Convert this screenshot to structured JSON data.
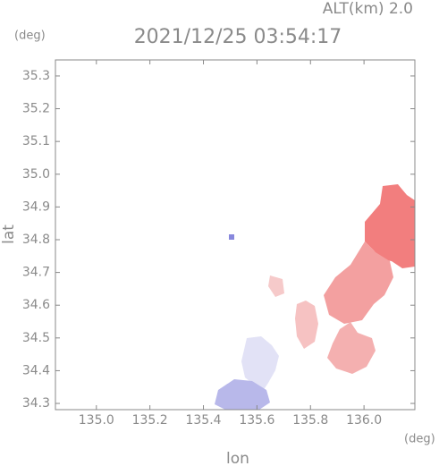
{
  "chart_data": {
    "type": "map",
    "title": "2021/12/25 03:54:17",
    "subtitle": "ALT(km) 2.0",
    "x_label": "lon",
    "y_label": "lat",
    "x_unit": "(deg)",
    "y_unit": "(deg)",
    "xlim": [
      134.847,
      136.19
    ],
    "ylim": [
      34.281,
      35.349
    ],
    "xticks": [
      {
        "value": 135,
        "label": "135.0"
      },
      135.2,
      135.4,
      135.6,
      135.8,
      {
        "value": 136,
        "label": "136.0"
      }
    ],
    "yticks": [
      34.3,
      34.4,
      34.5,
      34.6,
      34.7,
      34.8,
      34.9,
      {
        "value": 35,
        "label": "35.0"
      },
      35.1,
      35.2,
      35.3
    ]
  }
}
